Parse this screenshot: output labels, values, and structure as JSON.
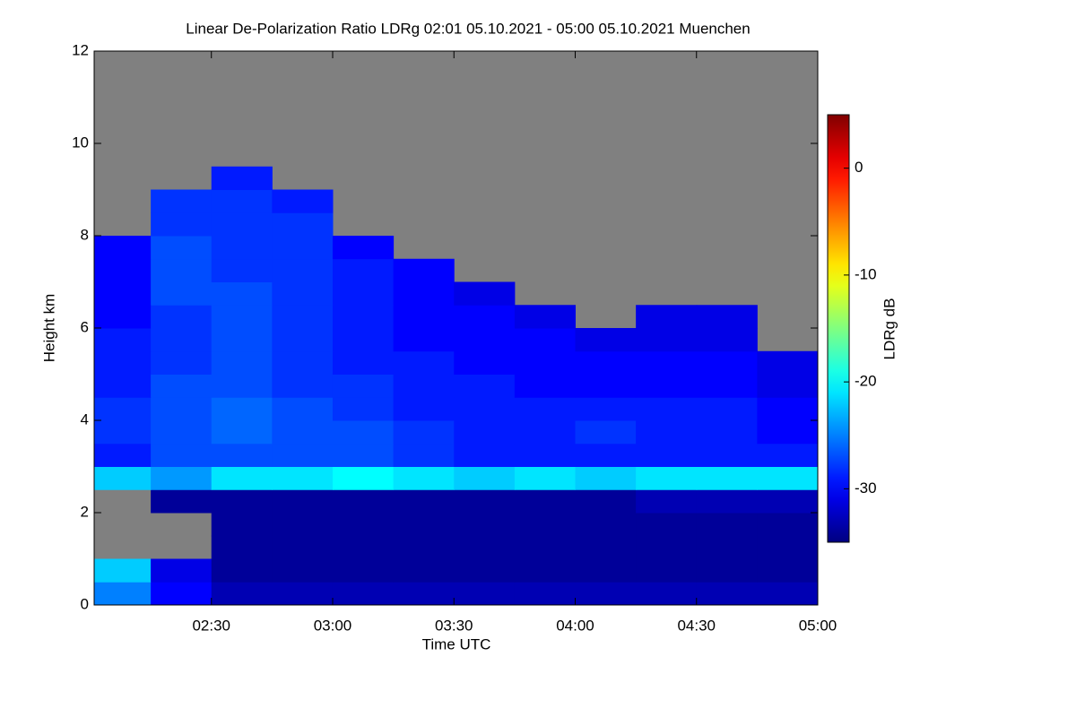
{
  "chart_data": {
    "type": "heatmap",
    "title": "Linear De-Polarization Ratio LDRg   02:01 05.10.2021 - 05:00 05.10.2021 Muenchen",
    "xlabel": "Time UTC",
    "ylabel": "Height km",
    "colorbar_label": "LDRg dB",
    "xlim": [
      121,
      300
    ],
    "xticks": [
      {
        "value": 150,
        "label": "02:30"
      },
      {
        "value": 180,
        "label": "03:00"
      },
      {
        "value": 210,
        "label": "03:30"
      },
      {
        "value": 240,
        "label": "04:00"
      },
      {
        "value": 270,
        "label": "04:30"
      },
      {
        "value": 300,
        "label": "05:00"
      }
    ],
    "ylim": [
      0,
      12
    ],
    "yticks": [
      0,
      2,
      4,
      6,
      8,
      10,
      12
    ],
    "zlim": [
      -35,
      5
    ],
    "zticks": [
      0,
      -10,
      -20,
      -30
    ],
    "colormap": "jet",
    "missing_color": "#808080",
    "x_edges": [
      121,
      135,
      150,
      165,
      180,
      195,
      210,
      225,
      240,
      255,
      270,
      285,
      300
    ],
    "y_edges": [
      0,
      0.5,
      1,
      1.5,
      2,
      2.5,
      3,
      3.5,
      4,
      4.5,
      5,
      5.5,
      6,
      6.5,
      7,
      7.5,
      8,
      8.5,
      9,
      9.5,
      10,
      10.5,
      11,
      11.5,
      12
    ],
    "z": [
      [
        -25,
        -30,
        -33,
        -33,
        -33,
        -33,
        -33,
        -33,
        -33,
        -33,
        -33,
        -33
      ],
      [
        -22,
        -31,
        -34,
        -34,
        -34,
        -34,
        -34,
        -34,
        -34,
        -34,
        -34,
        -34
      ],
      [
        null,
        null,
        -34,
        -34,
        -34,
        -34,
        -34,
        -34,
        -34,
        -34,
        -34,
        -34
      ],
      [
        null,
        null,
        -34,
        -34,
        -34,
        -34,
        -34,
        -34,
        -34,
        -34,
        -34,
        -34
      ],
      [
        null,
        -34,
        -34,
        -34,
        -34,
        -34,
        -34,
        -34,
        -34,
        -33,
        -33,
        -33
      ],
      [
        -22,
        -24,
        -21,
        -21,
        -20,
        -21,
        -22,
        -21,
        -22,
        -21,
        -21,
        -21
      ],
      [
        -29,
        -27,
        -27,
        -27,
        -27,
        -28,
        -29,
        -29,
        -29,
        -29,
        -29,
        -29
      ],
      [
        -28,
        -27,
        -26,
        -27,
        -27,
        -28,
        -29,
        -29,
        -28,
        -29,
        -29,
        -30
      ],
      [
        -28,
        -27,
        -26,
        -27,
        -28,
        -29,
        -29,
        -29,
        -29,
        -29,
        -29,
        -30
      ],
      [
        -29,
        -27,
        -27,
        -28,
        -28,
        -29,
        -29,
        -30,
        -30,
        -30,
        -30,
        -31
      ],
      [
        -29,
        -28,
        -27,
        -28,
        -29,
        -29,
        -30,
        -30,
        -30,
        -30,
        -30,
        -31
      ],
      [
        -29,
        -28,
        -27,
        -28,
        -29,
        -30,
        -30,
        -30,
        -31,
        -31,
        -31,
        null
      ],
      [
        -30,
        -28,
        -27,
        -28,
        -29,
        -30,
        -30,
        -31,
        null,
        -31,
        -31,
        null
      ],
      [
        -30,
        -27,
        -27,
        -28,
        -29,
        -30,
        -31,
        null,
        null,
        null,
        null,
        null
      ],
      [
        -30,
        -27,
        -28,
        -28,
        -29,
        -30,
        null,
        null,
        null,
        null,
        null,
        null
      ],
      [
        -30,
        -27,
        -28,
        -28,
        -30,
        null,
        null,
        null,
        null,
        null,
        null,
        null
      ],
      [
        null,
        -28,
        -28,
        -28,
        null,
        null,
        null,
        null,
        null,
        null,
        null,
        null
      ],
      [
        null,
        -28,
        -28,
        -29,
        null,
        null,
        null,
        null,
        null,
        null,
        null,
        null
      ],
      [
        null,
        null,
        -29,
        null,
        null,
        null,
        null,
        null,
        null,
        null,
        null,
        null
      ],
      [
        null,
        null,
        null,
        null,
        null,
        null,
        null,
        null,
        null,
        null,
        null,
        null
      ],
      [
        null,
        null,
        null,
        null,
        null,
        null,
        null,
        null,
        null,
        null,
        null,
        null
      ],
      [
        null,
        null,
        null,
        null,
        null,
        null,
        null,
        null,
        null,
        null,
        null,
        null
      ],
      [
        null,
        null,
        null,
        null,
        null,
        null,
        null,
        null,
        null,
        null,
        null,
        null
      ],
      [
        null,
        null,
        null,
        null,
        null,
        null,
        null,
        null,
        null,
        null,
        null,
        null
      ]
    ]
  }
}
